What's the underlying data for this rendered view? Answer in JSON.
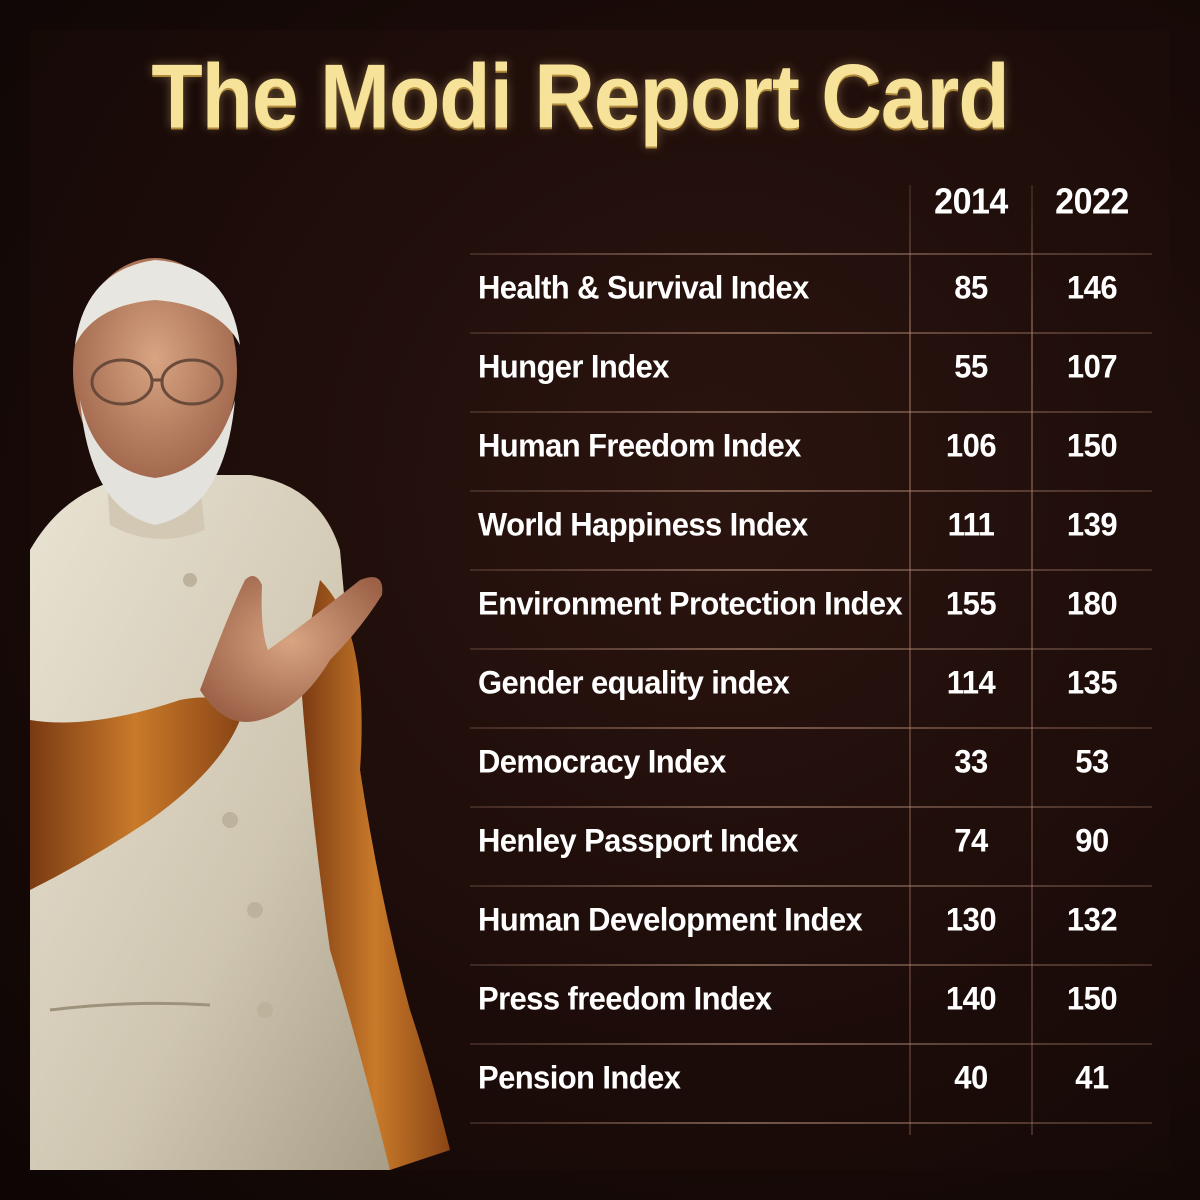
{
  "chart_data": {
    "type": "table",
    "title": "The Modi Report Card",
    "columns": [
      "2014",
      "2022"
    ],
    "rows": [
      {
        "label": "Health & Survival Index",
        "values": [
          "85",
          "146"
        ]
      },
      {
        "label": "Hunger Index",
        "values": [
          "55",
          "107"
        ]
      },
      {
        "label": "Human Freedom Index",
        "values": [
          "106",
          "150"
        ]
      },
      {
        "label": "World Happiness Index",
        "values": [
          "111",
          "139"
        ]
      },
      {
        "label": "Environment Protection Index",
        "values": [
          "155",
          "180"
        ]
      },
      {
        "label": "Gender equality index",
        "values": [
          "114",
          "135"
        ]
      },
      {
        "label": "Democracy Index",
        "values": [
          "33",
          "53"
        ]
      },
      {
        "label": "Henley Passport Index",
        "values": [
          "74",
          "90"
        ]
      },
      {
        "label": "Human Development Index",
        "values": [
          "130",
          "132"
        ]
      },
      {
        "label": "Press freedom Index",
        "values": [
          "140",
          "150"
        ]
      },
      {
        "label": "Pension Index",
        "values": [
          "40",
          "41"
        ]
      }
    ]
  },
  "colors": {
    "title": "#f7e29a",
    "text": "#ffffff",
    "background": "#1c0c09"
  }
}
